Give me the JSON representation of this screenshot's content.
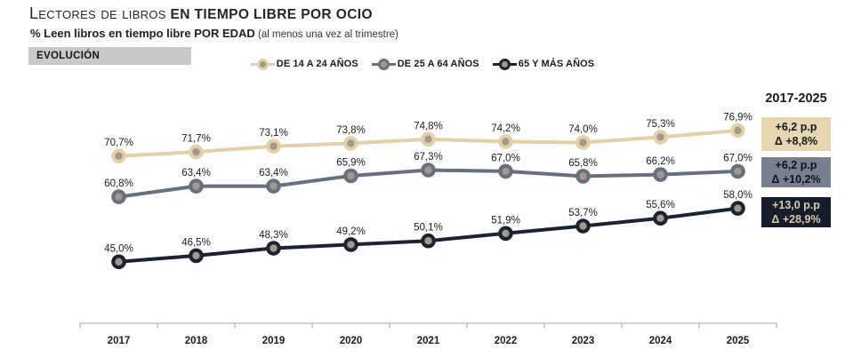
{
  "header": {
    "title_light": "Lectores de libros",
    "title_bold": " EN TIEMPO LIBRE POR OCIO",
    "subtitle_bold": "% Leen libros en tiempo libre POR EDAD",
    "subtitle_note": " (al menos una vez al trimestre)",
    "evolution_tag": "EVOLUCIÓN"
  },
  "right_panel": {
    "period_label": "2017-2025",
    "boxes": [
      {
        "line1": "+6,2 p.p",
        "line2": "Δ +8,8%",
        "bg": "#e6d6b2",
        "fg": "#161616"
      },
      {
        "line1": "+6,2 p.p",
        "line2": "Δ +10,2%",
        "bg": "#77808f",
        "fg": "#0e1218"
      },
      {
        "line1": "+13,0 p.p",
        "line2": "Δ +28,9%",
        "bg": "#161d2b",
        "fg": "#d7cbb0"
      }
    ]
  },
  "chart_data": {
    "type": "line",
    "title": "Lectores de libros en tiempo libre por ocio",
    "subtitle": "% Leen libros en tiempo libre por edad (al menos una vez al trimestre)",
    "x": [
      2017,
      2018,
      2019,
      2020,
      2021,
      2022,
      2023,
      2024,
      2025
    ],
    "series": [
      {
        "name": "DE 14 A 24 AÑOS",
        "color": "#e3d0a6",
        "values": [
          70.7,
          71.7,
          73.1,
          73.8,
          74.8,
          74.2,
          74.0,
          75.3,
          76.9
        ]
      },
      {
        "name": "DE 25 A 64 AÑOS",
        "color": "#67707f",
        "values": [
          60.8,
          63.4,
          63.4,
          65.9,
          67.3,
          67.0,
          65.8,
          66.2,
          67.0
        ]
      },
      {
        "name": "65 Y MÁS AÑOS",
        "color": "#1b2230",
        "values": [
          45.0,
          46.5,
          48.3,
          49.2,
          50.1,
          51.9,
          53.7,
          55.6,
          58.0
        ]
      }
    ],
    "marker_inner_color": "#a3988a",
    "value_suffix": "%",
    "decimal_separator": ",",
    "legend_position": "top",
    "grid": false,
    "ylim": [
      40,
      82
    ],
    "axis_color": "#b3b3b3",
    "label_color": "#1c1c1c"
  }
}
